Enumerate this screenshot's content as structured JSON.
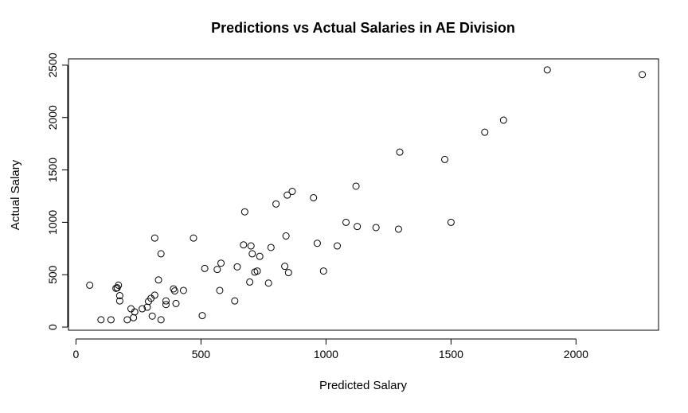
{
  "chart_data": {
    "type": "scatter",
    "title": "Predictions vs Actual Salaries in AE Division",
    "xlabel": "Predicted Salary",
    "ylabel": "Actual Salary",
    "xlim": [
      -30,
      2330
    ],
    "ylim": [
      -30,
      2560
    ],
    "x_ticks": [
      0,
      500,
      1000,
      1500,
      2000
    ],
    "y_ticks": [
      0,
      500,
      1000,
      1500,
      2000,
      2500
    ],
    "grid": false,
    "legend": "none",
    "points": [
      {
        "x": 55,
        "y": 400
      },
      {
        "x": 100,
        "y": 70
      },
      {
        "x": 140,
        "y": 70
      },
      {
        "x": 160,
        "y": 370
      },
      {
        "x": 165,
        "y": 375
      },
      {
        "x": 170,
        "y": 400
      },
      {
        "x": 175,
        "y": 300
      },
      {
        "x": 175,
        "y": 250
      },
      {
        "x": 205,
        "y": 70
      },
      {
        "x": 220,
        "y": 175
      },
      {
        "x": 230,
        "y": 90
      },
      {
        "x": 235,
        "y": 145
      },
      {
        "x": 265,
        "y": 175
      },
      {
        "x": 285,
        "y": 190
      },
      {
        "x": 290,
        "y": 245
      },
      {
        "x": 300,
        "y": 275
      },
      {
        "x": 305,
        "y": 105
      },
      {
        "x": 315,
        "y": 305
      },
      {
        "x": 315,
        "y": 850
      },
      {
        "x": 330,
        "y": 450
      },
      {
        "x": 340,
        "y": 700
      },
      {
        "x": 340,
        "y": 70
      },
      {
        "x": 360,
        "y": 250
      },
      {
        "x": 360,
        "y": 215
      },
      {
        "x": 390,
        "y": 365
      },
      {
        "x": 395,
        "y": 345
      },
      {
        "x": 400,
        "y": 225
      },
      {
        "x": 430,
        "y": 350
      },
      {
        "x": 470,
        "y": 850
      },
      {
        "x": 505,
        "y": 110
      },
      {
        "x": 515,
        "y": 560
      },
      {
        "x": 565,
        "y": 550
      },
      {
        "x": 575,
        "y": 350
      },
      {
        "x": 580,
        "y": 610
      },
      {
        "x": 635,
        "y": 250
      },
      {
        "x": 645,
        "y": 575
      },
      {
        "x": 670,
        "y": 785
      },
      {
        "x": 675,
        "y": 1100
      },
      {
        "x": 695,
        "y": 430
      },
      {
        "x": 700,
        "y": 775
      },
      {
        "x": 705,
        "y": 700
      },
      {
        "x": 715,
        "y": 525
      },
      {
        "x": 725,
        "y": 535
      },
      {
        "x": 735,
        "y": 675
      },
      {
        "x": 770,
        "y": 420
      },
      {
        "x": 780,
        "y": 760
      },
      {
        "x": 800,
        "y": 1175
      },
      {
        "x": 835,
        "y": 580
      },
      {
        "x": 840,
        "y": 870
      },
      {
        "x": 845,
        "y": 1260
      },
      {
        "x": 850,
        "y": 520
      },
      {
        "x": 865,
        "y": 1295
      },
      {
        "x": 950,
        "y": 1235
      },
      {
        "x": 965,
        "y": 800
      },
      {
        "x": 990,
        "y": 535
      },
      {
        "x": 1045,
        "y": 775
      },
      {
        "x": 1080,
        "y": 1000
      },
      {
        "x": 1120,
        "y": 1345
      },
      {
        "x": 1125,
        "y": 960
      },
      {
        "x": 1200,
        "y": 950
      },
      {
        "x": 1290,
        "y": 935
      },
      {
        "x": 1295,
        "y": 1670
      },
      {
        "x": 1475,
        "y": 1600
      },
      {
        "x": 1500,
        "y": 1000
      },
      {
        "x": 1635,
        "y": 1860
      },
      {
        "x": 1710,
        "y": 1975
      },
      {
        "x": 1885,
        "y": 2455
      },
      {
        "x": 2265,
        "y": 2410
      }
    ]
  }
}
